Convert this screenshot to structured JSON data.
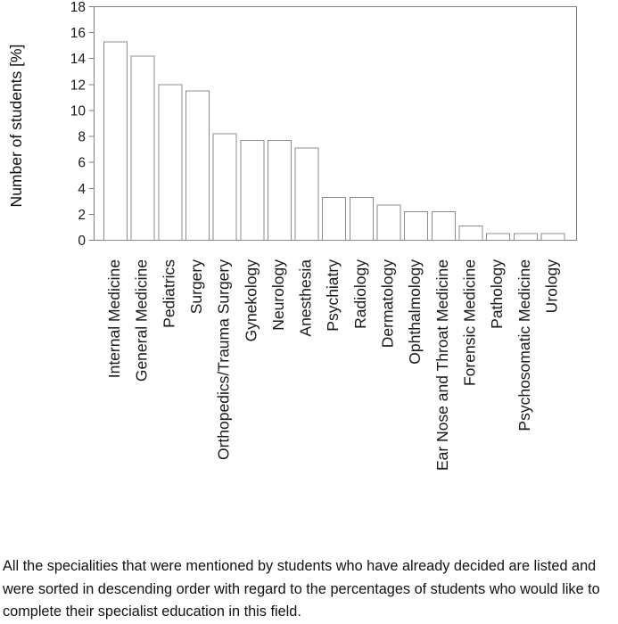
{
  "figure": {
    "caption": "All the specialities that were mentioned by students who have already decided are listed and were sorted in descending order with regard to the percentages of students who would like to complete their specialist education in this field."
  },
  "chart_data": {
    "type": "bar",
    "title": "",
    "xlabel": "",
    "ylabel": "Number of students [%]",
    "ylim": [
      0,
      18
    ],
    "ytick_step": 2,
    "grid": false,
    "legend_position": "none",
    "categories": [
      "Internal Medicine",
      "General Medicine",
      "Pediatrics",
      "Surgery",
      "Orthopedics/Trauma Surgery",
      "Gynekology",
      "Neurology",
      "Anesthesia",
      "Psychiatry",
      "Radiology",
      "Dermatology",
      "Ophthalmology",
      "Ear Nose and Throat Medicine",
      "Forensic Medicine",
      "Pathology",
      "Psychosomatic Medicine",
      "Urology"
    ],
    "values": [
      15.3,
      14.2,
      12.0,
      11.5,
      8.2,
      7.7,
      7.7,
      7.1,
      3.3,
      3.3,
      2.7,
      2.2,
      2.2,
      1.1,
      0.5,
      0.5,
      0.5
    ],
    "colors": {
      "bar_fill": "#ffffff",
      "bar_stroke": "#8c8c8c",
      "axis": "#808080",
      "text": "#1a1a1a"
    }
  }
}
